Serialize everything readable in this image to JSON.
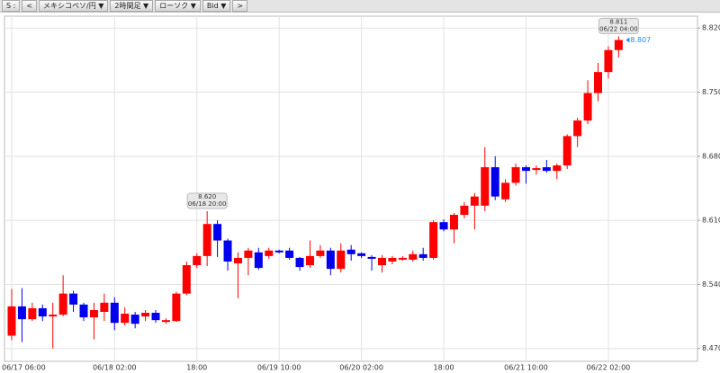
{
  "toolbar": {
    "items": [
      "S :",
      "<",
      "メキシコペソ/円 ▼",
      "2時間足 ▼",
      "ローソク ▼",
      "Bid ▼",
      ">"
    ]
  },
  "chart_data": {
    "type": "candlestick",
    "categories": [
      "06/17 06:00",
      null,
      null,
      null,
      null,
      null,
      null,
      null,
      null,
      null,
      "06/18 02:00",
      null,
      null,
      null,
      null,
      null,
      null,
      null,
      "18:00",
      null,
      null,
      null,
      null,
      null,
      null,
      null,
      "06/19 10:00",
      null,
      null,
      null,
      null,
      null,
      null,
      null,
      "06/20 02:00",
      null,
      null,
      null,
      null,
      null,
      null,
      null,
      "18:00",
      null,
      null,
      null,
      null,
      null,
      null,
      null,
      "06/21 10:00",
      null,
      null,
      null,
      null,
      null,
      null,
      null,
      "06/22 02:00",
      null
    ],
    "open": [
      8.484,
      8.516,
      8.502,
      8.514,
      8.505,
      8.507,
      8.53,
      8.518,
      8.504,
      8.51,
      8.52,
      8.498,
      8.507,
      8.505,
      8.509,
      8.499,
      8.5,
      8.53,
      8.561,
      8.571,
      8.606,
      8.588,
      8.563,
      8.569,
      8.575,
      8.571,
      8.577,
      8.577,
      8.569,
      8.561,
      8.571,
      8.577,
      8.557,
      8.578,
      8.574,
      8.57,
      8.561,
      8.565,
      8.567,
      8.567,
      8.573,
      8.569,
      8.608,
      8.6,
      8.616,
      8.626,
      8.626,
      8.668,
      8.633,
      8.651,
      8.668,
      8.665,
      8.668,
      8.664,
      8.67,
      8.702,
      8.719,
      8.749,
      8.772,
      8.796
    ],
    "high": [
      8.535,
      8.536,
      8.52,
      8.518,
      8.52,
      8.55,
      8.533,
      8.52,
      8.52,
      8.53,
      8.526,
      8.515,
      8.51,
      8.512,
      8.512,
      8.503,
      8.532,
      8.565,
      8.574,
      8.62,
      8.61,
      8.59,
      8.575,
      8.58,
      8.58,
      8.58,
      8.578,
      8.58,
      8.57,
      8.588,
      8.583,
      8.58,
      8.585,
      8.583,
      8.575,
      8.572,
      8.572,
      8.571,
      8.571,
      8.577,
      8.58,
      8.61,
      8.611,
      8.618,
      8.63,
      8.64,
      8.69,
      8.68,
      8.655,
      8.672,
      8.67,
      8.67,
      8.676,
      8.672,
      8.704,
      8.722,
      8.763,
      8.782,
      8.8,
      8.811
    ],
    "low": [
      8.479,
      8.477,
      8.5,
      8.5,
      8.47,
      8.505,
      8.51,
      8.5,
      8.48,
      8.5,
      8.49,
      8.495,
      8.492,
      8.5,
      8.498,
      8.497,
      8.499,
      8.528,
      8.558,
      8.56,
      8.57,
      8.555,
      8.525,
      8.55,
      8.556,
      8.568,
      8.574,
      8.567,
      8.555,
      8.558,
      8.569,
      8.55,
      8.553,
      8.566,
      8.569,
      8.555,
      8.553,
      8.562,
      8.566,
      8.565,
      8.566,
      8.567,
      8.598,
      8.585,
      8.612,
      8.6,
      8.62,
      8.632,
      8.63,
      8.648,
      8.65,
      8.66,
      8.662,
      8.655,
      8.666,
      8.69,
      8.715,
      8.74,
      8.765,
      8.788
    ],
    "close": [
      8.516,
      8.502,
      8.514,
      8.505,
      8.507,
      8.53,
      8.518,
      8.504,
      8.512,
      8.52,
      8.498,
      8.508,
      8.497,
      8.509,
      8.501,
      8.501,
      8.53,
      8.561,
      8.571,
      8.606,
      8.588,
      8.565,
      8.569,
      8.577,
      8.558,
      8.577,
      8.575,
      8.569,
      8.559,
      8.571,
      8.577,
      8.557,
      8.577,
      8.573,
      8.571,
      8.568,
      8.569,
      8.569,
      8.569,
      8.573,
      8.569,
      8.608,
      8.6,
      8.616,
      8.626,
      8.636,
      8.668,
      8.636,
      8.651,
      8.668,
      8.664,
      8.667,
      8.664,
      8.67,
      8.702,
      8.719,
      8.749,
      8.772,
      8.796,
      8.807
    ],
    "up_color": "#ff0000",
    "down_color": "#0000ee",
    "ylim": [
      8.456,
      8.833
    ],
    "yticks": [
      {
        "value": 8.47,
        "label": "8.470"
      },
      {
        "value": 8.54,
        "label": "8.540"
      },
      {
        "value": 8.61,
        "label": "8.610"
      },
      {
        "value": 8.68,
        "label": "8.680"
      },
      {
        "value": 8.75,
        "label": "8.750"
      },
      {
        "value": 8.82,
        "label": "8.820"
      }
    ],
    "grid": true,
    "annotations": [
      {
        "value": 8.62,
        "label": "8.620",
        "time": "06/18 20:00"
      },
      {
        "value": 8.811,
        "label": "8.811",
        "time": "06/22 04:00"
      }
    ],
    "last_price": {
      "value": 8.807,
      "label": "8.807",
      "color": "#1e90ff"
    }
  }
}
